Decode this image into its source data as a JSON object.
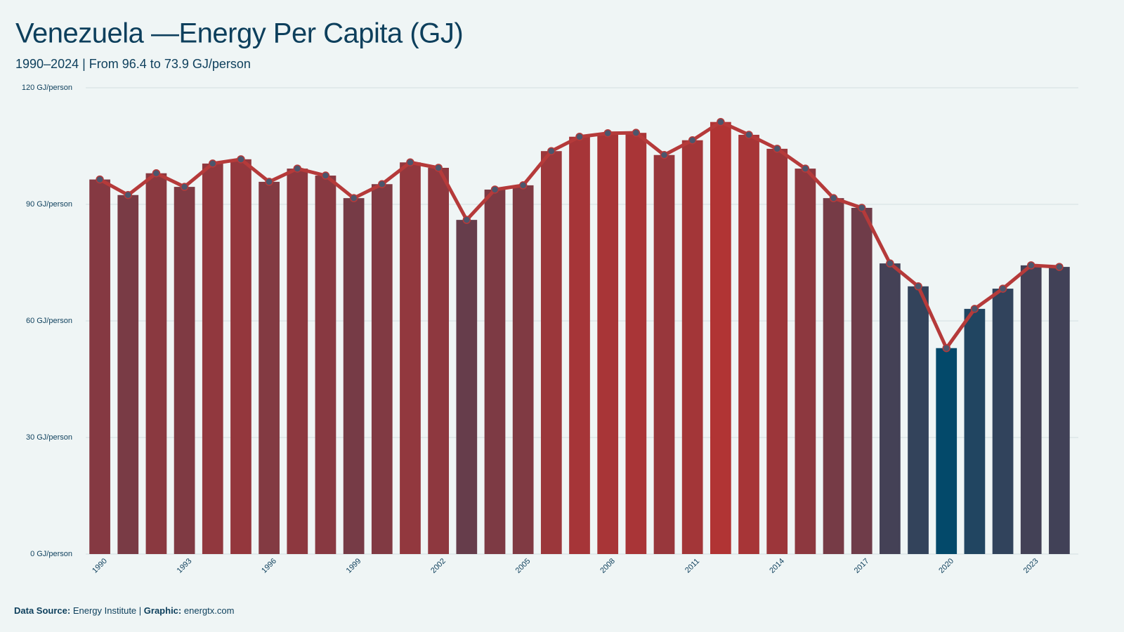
{
  "chart_data": {
    "type": "bar-line",
    "title": "Venezuela —Energy Per Capita (GJ)",
    "subtitle": "1990–2024 | From 96.4 to 73.9 GJ/person",
    "x": [
      1990,
      1991,
      1992,
      1993,
      1994,
      1995,
      1996,
      1997,
      1998,
      1999,
      2000,
      2001,
      2002,
      2003,
      2004,
      2005,
      2006,
      2007,
      2008,
      2009,
      2010,
      2011,
      2012,
      2013,
      2014,
      2015,
      2016,
      2017,
      2018,
      2019,
      2020,
      2021,
      2022,
      2023,
      2024
    ],
    "values": [
      96.4,
      92.4,
      98.0,
      94.5,
      100.5,
      101.6,
      95.8,
      99.2,
      97.4,
      91.6,
      95.2,
      100.8,
      99.4,
      86.0,
      93.8,
      94.9,
      103.7,
      107.4,
      108.3,
      108.4,
      102.7,
      106.5,
      111.2,
      107.9,
      104.3,
      99.2,
      91.6,
      89.1,
      74.8,
      68.9,
      53.0,
      63.1,
      68.3,
      74.3,
      73.9
    ],
    "xlim": [
      1989.5,
      2024.5
    ],
    "xticks": [
      1990,
      1993,
      1996,
      1999,
      2002,
      2005,
      2008,
      2011,
      2014,
      2017,
      2020,
      2023
    ],
    "ylim": [
      0,
      120
    ],
    "yticks": [
      {
        "value": 0,
        "label": "0 GJ/person"
      },
      {
        "value": 30,
        "label": "30 GJ/person"
      },
      {
        "value": 60,
        "label": "60 GJ/person"
      },
      {
        "value": 90,
        "label": "90 GJ/person"
      },
      {
        "value": 120,
        "label": "120 GJ/person"
      }
    ],
    "grid": true,
    "bar_color_low": "#03496a",
    "bar_color_high": "#b13434",
    "line_color": "#b53a3a",
    "point_color": "#4c566c",
    "footer": {
      "source_label": "Data Source:",
      "source": "Energy Institute |",
      "graphic_label": "Graphic:",
      "graphic": "energtx.com"
    }
  }
}
